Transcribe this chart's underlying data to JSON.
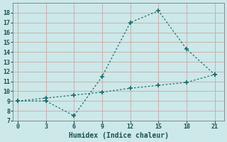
{
  "xlabel": "Humidex (Indice chaleur)",
  "background_color": "#cce8e8",
  "grid_color": "#b0d4d4",
  "line_color": "#1a6e6e",
  "x_line1": [
    0,
    3,
    6,
    9,
    12,
    15,
    18,
    21
  ],
  "y_line1": [
    9,
    9,
    7.5,
    11.5,
    17,
    18.2,
    14.3,
    11.7
  ],
  "x_line2": [
    0,
    3,
    6,
    9,
    12,
    15,
    18,
    21
  ],
  "y_line2": [
    9,
    9.3,
    9.6,
    9.9,
    10.3,
    10.6,
    10.9,
    11.7
  ],
  "xlim": [
    -0.5,
    22
  ],
  "ylim": [
    7,
    19
  ],
  "xticks": [
    0,
    3,
    6,
    9,
    12,
    15,
    18,
    21
  ],
  "yticks": [
    7,
    8,
    9,
    10,
    11,
    12,
    13,
    14,
    15,
    16,
    17,
    18
  ]
}
